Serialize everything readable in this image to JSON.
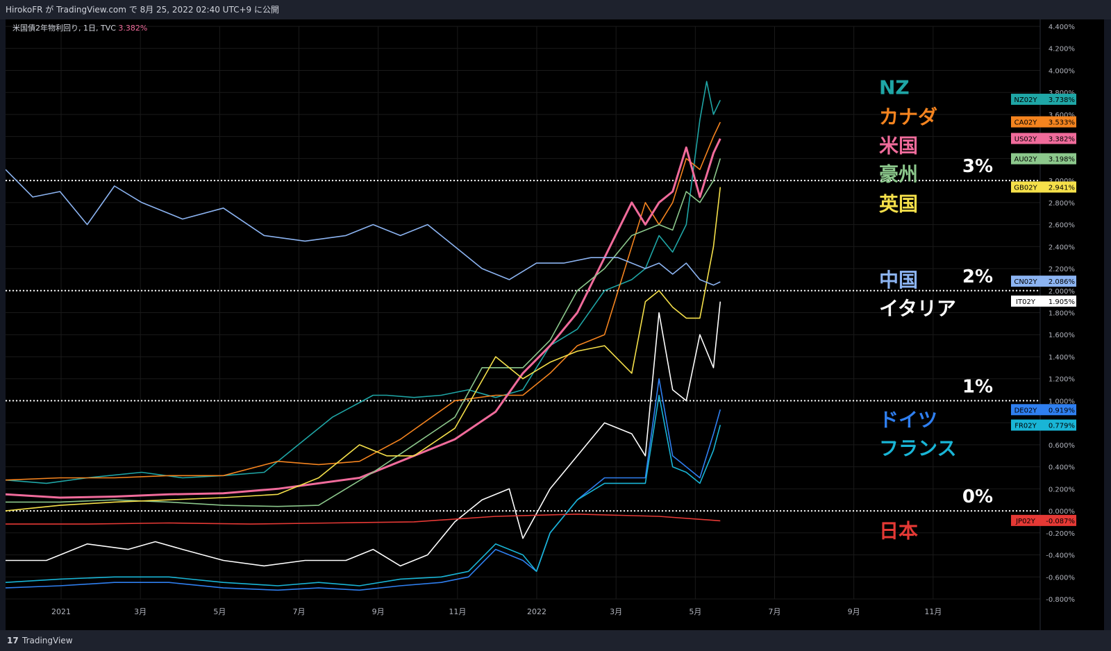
{
  "header": {
    "publish_text": "HirokoFR が TradingView.com で 8月 25, 2022 02:40 UTC+9 に公開"
  },
  "chart_header": {
    "symbol": "米国債2年物利回り, 1日, TVC",
    "value": "3.382%"
  },
  "footer": {
    "logo": "17",
    "brand": "TradingView"
  },
  "colors": {
    "background": "#000000",
    "grid": "#1a1a1a",
    "axis_text": "#b2b5be"
  },
  "chart_data": {
    "type": "line",
    "x_axis_labels": [
      "2021",
      "3月",
      "5月",
      "7月",
      "9月",
      "11月",
      "2022",
      "3月",
      "5月",
      "7月",
      "9月",
      "11月"
    ],
    "y_axis_labels": [
      "4.400%",
      "4.200%",
      "4.000%",
      "3.800%",
      "3.600%",
      "3.400%",
      "3.200%",
      "3.000%",
      "2.800%",
      "2.600%",
      "2.400%",
      "2.200%",
      "2.000%",
      "1.800%",
      "1.600%",
      "1.400%",
      "1.200%",
      "1.000%",
      "0.800%",
      "0.600%",
      "0.400%",
      "0.200%",
      "0.000%",
      "-0.200%",
      "-0.400%",
      "-0.600%",
      "-0.800%"
    ],
    "ylim": [
      -0.8,
      4.4
    ],
    "reference_lines": [
      {
        "value": 3.0,
        "label": "3%"
      },
      {
        "value": 2.0,
        "label": "2%"
      },
      {
        "value": 1.0,
        "label": "1%"
      },
      {
        "value": 0.0,
        "label": "0%"
      }
    ],
    "series": [
      {
        "name": "NZ",
        "code": "NZ02Y",
        "value_label": "3.738%",
        "color": "#1fa6a6",
        "x": [
          0,
          30,
          60,
          100,
          130,
          160,
          190,
          200,
          240,
          270,
          280,
          300,
          320,
          340,
          360,
          380,
          400,
          420,
          440,
          460,
          470,
          480,
          490,
          500,
          510,
          515,
          520,
          525
        ],
        "y": [
          0.28,
          0.25,
          0.3,
          0.35,
          0.3,
          0.32,
          0.35,
          0.45,
          0.85,
          1.05,
          1.05,
          1.03,
          1.05,
          1.1,
          1.03,
          1.1,
          1.5,
          1.65,
          2.0,
          2.1,
          2.2,
          2.5,
          2.35,
          2.6,
          3.55,
          3.9,
          3.6,
          3.73
        ]
      },
      {
        "name": "カナダ",
        "code": "CA02Y",
        "value_label": "3.533%",
        "color": "#f5841f",
        "x": [
          0,
          40,
          80,
          120,
          160,
          200,
          230,
          260,
          290,
          330,
          360,
          380,
          400,
          420,
          440,
          460,
          470,
          480,
          490,
          500,
          510,
          520,
          525
        ],
        "y": [
          0.28,
          0.3,
          0.3,
          0.32,
          0.32,
          0.45,
          0.42,
          0.45,
          0.65,
          1.0,
          1.05,
          1.05,
          1.25,
          1.5,
          1.6,
          2.4,
          2.8,
          2.6,
          2.8,
          3.2,
          3.1,
          3.4,
          3.53
        ]
      },
      {
        "name": "米国",
        "code": "US02Y",
        "value_label": "3.382%",
        "color": "#f06b9b",
        "x": [
          0,
          40,
          80,
          120,
          160,
          200,
          230,
          260,
          290,
          330,
          360,
          380,
          400,
          420,
          440,
          460,
          470,
          480,
          490,
          500,
          510,
          520,
          525
        ],
        "y": [
          0.15,
          0.12,
          0.13,
          0.15,
          0.16,
          0.2,
          0.25,
          0.3,
          0.45,
          0.65,
          0.9,
          1.25,
          1.5,
          1.8,
          2.3,
          2.8,
          2.6,
          2.8,
          2.9,
          3.3,
          2.85,
          3.25,
          3.38
        ]
      },
      {
        "name": "豪州",
        "code": "AU02Y",
        "value_label": "3.198%",
        "color": "#8cc88c",
        "x": [
          0,
          40,
          80,
          120,
          160,
          200,
          230,
          250,
          270,
          300,
          330,
          350,
          380,
          400,
          420,
          440,
          460,
          480,
          490,
          500,
          510,
          520,
          525
        ],
        "y": [
          0.08,
          0.08,
          0.1,
          0.08,
          0.05,
          0.04,
          0.05,
          0.2,
          0.35,
          0.6,
          0.85,
          1.3,
          1.3,
          1.55,
          2.0,
          2.2,
          2.5,
          2.6,
          2.55,
          2.9,
          2.8,
          3.0,
          3.2
        ]
      },
      {
        "name": "英国",
        "code": "GB02Y",
        "value_label": "2.941%",
        "color": "#f5e04a",
        "x": [
          0,
          40,
          80,
          120,
          160,
          200,
          230,
          260,
          280,
          300,
          330,
          360,
          380,
          400,
          420,
          440,
          460,
          470,
          480,
          490,
          500,
          510,
          520,
          525
        ],
        "y": [
          0.0,
          0.05,
          0.08,
          0.1,
          0.12,
          0.15,
          0.3,
          0.6,
          0.5,
          0.5,
          0.75,
          1.4,
          1.2,
          1.35,
          1.45,
          1.5,
          1.25,
          1.9,
          2.0,
          1.85,
          1.75,
          1.75,
          2.4,
          2.94
        ]
      },
      {
        "name": "中国",
        "code": "CN02Y",
        "value_label": "2.086%",
        "color": "#8cb4f2",
        "x": [
          0,
          20,
          40,
          60,
          80,
          100,
          130,
          160,
          190,
          220,
          250,
          270,
          290,
          310,
          330,
          350,
          370,
          390,
          410,
          430,
          450,
          470,
          480,
          490,
          500,
          510,
          520,
          525
        ],
        "y": [
          3.1,
          2.85,
          2.9,
          2.6,
          2.95,
          2.8,
          2.65,
          2.75,
          2.5,
          2.45,
          2.5,
          2.6,
          2.5,
          2.6,
          2.4,
          2.2,
          2.1,
          2.25,
          2.25,
          2.3,
          2.3,
          2.2,
          2.25,
          2.15,
          2.25,
          2.1,
          2.05,
          2.08
        ]
      },
      {
        "name": "イタリア",
        "code": "IT02Y",
        "value_label": "1.905%",
        "color": "#ffffff",
        "x": [
          0,
          30,
          60,
          90,
          110,
          130,
          160,
          190,
          220,
          250,
          270,
          290,
          310,
          330,
          350,
          370,
          380,
          400,
          420,
          440,
          460,
          470,
          480,
          490,
          500,
          510,
          520,
          525
        ],
        "y": [
          -0.45,
          -0.45,
          -0.3,
          -0.35,
          -0.28,
          -0.35,
          -0.45,
          -0.5,
          -0.45,
          -0.45,
          -0.35,
          -0.5,
          -0.4,
          -0.1,
          0.1,
          0.2,
          -0.25,
          0.2,
          0.5,
          0.8,
          0.7,
          0.5,
          1.8,
          1.1,
          1.0,
          1.6,
          1.3,
          1.9
        ]
      },
      {
        "name": "ドイツ",
        "code": "DE02Y",
        "value_label": "0.919%",
        "color": "#2f7ff0",
        "x": [
          0,
          40,
          80,
          120,
          160,
          200,
          230,
          260,
          290,
          320,
          340,
          360,
          380,
          390,
          400,
          420,
          440,
          460,
          470,
          480,
          490,
          500,
          510,
          520,
          525
        ],
        "y": [
          -0.7,
          -0.68,
          -0.65,
          -0.65,
          -0.7,
          -0.72,
          -0.7,
          -0.72,
          -0.68,
          -0.65,
          -0.6,
          -0.35,
          -0.45,
          -0.55,
          -0.2,
          0.1,
          0.3,
          0.3,
          0.3,
          1.2,
          0.5,
          0.4,
          0.3,
          0.7,
          0.92
        ]
      },
      {
        "name": "フランス",
        "code": "FR02Y",
        "value_label": "0.779%",
        "color": "#19b5d6",
        "x": [
          0,
          40,
          80,
          120,
          160,
          200,
          230,
          260,
          290,
          320,
          340,
          360,
          380,
          390,
          400,
          420,
          440,
          460,
          470,
          480,
          490,
          500,
          510,
          520,
          525
        ],
        "y": [
          -0.65,
          -0.62,
          -0.6,
          -0.6,
          -0.65,
          -0.68,
          -0.65,
          -0.68,
          -0.62,
          -0.6,
          -0.55,
          -0.3,
          -0.4,
          -0.55,
          -0.2,
          0.1,
          0.25,
          0.25,
          0.25,
          1.05,
          0.4,
          0.35,
          0.25,
          0.55,
          0.78
        ]
      },
      {
        "name": "日本",
        "code": "JP02Y",
        "value_label": "-0.087%",
        "color": "#e53935",
        "x": [
          0,
          60,
          120,
          180,
          240,
          300,
          360,
          420,
          480,
          525
        ],
        "y": [
          -0.12,
          -0.12,
          -0.11,
          -0.12,
          -0.11,
          -0.1,
          -0.05,
          -0.03,
          -0.05,
          -0.09
        ]
      }
    ]
  }
}
